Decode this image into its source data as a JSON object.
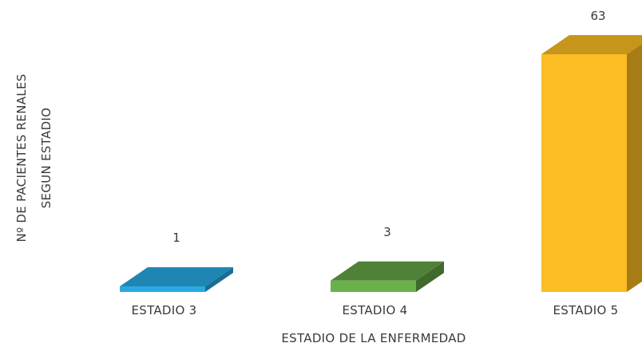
{
  "chart_data": {
    "type": "bar",
    "categories": [
      "ESTADIO 3",
      "ESTADIO 4",
      "ESTADIO 5"
    ],
    "values": [
      1,
      3,
      63
    ],
    "data_labels": [
      "1",
      "3",
      "63"
    ],
    "xlabel": "ESTADIO DE LA ENFERMEDAD",
    "ylabel_lines": [
      "Nº DE PACIENTES RENALES",
      "SEGUN ESTADIO"
    ],
    "ylim": [
      0,
      63
    ],
    "grid": false,
    "legend": "none",
    "colors": {
      "front": [
        "#29a9e1",
        "#6ab04c",
        "#fbbc24"
      ],
      "top": [
        "#1f86b3",
        "#4f8236",
        "#c7941c"
      ],
      "side": [
        "#1a6e94",
        "#3f6a2b",
        "#a77c16"
      ]
    }
  }
}
